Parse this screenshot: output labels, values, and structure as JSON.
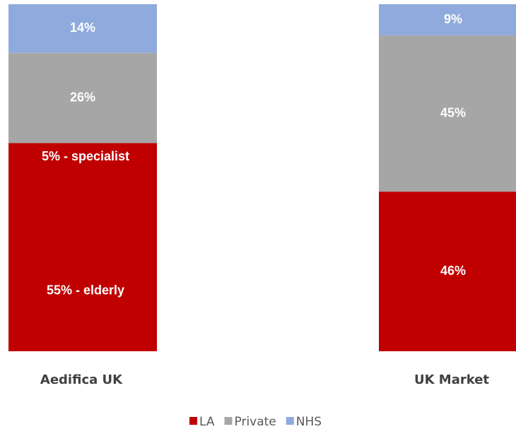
{
  "chart_data": {
    "type": "stacked_bar",
    "categories": [
      "Aedifica UK",
      "UK Market"
    ],
    "series": [
      {
        "name": "LA",
        "color": "#c00000",
        "values": [
          60,
          46
        ],
        "value_labels": [
          null,
          "46%"
        ]
      },
      {
        "name": "Private",
        "color": "#a6a6a6",
        "values": [
          26,
          45
        ],
        "value_labels": [
          "26%",
          "45%"
        ]
      },
      {
        "name": "NHS",
        "color": "#8faadc",
        "values": [
          14,
          9
        ],
        "value_labels": [
          "14%",
          "9%"
        ]
      }
    ],
    "annotations": [
      {
        "text": "5% - specialist",
        "value": 5
      },
      {
        "text": "55% - elderly",
        "value": 55
      }
    ],
    "ylim": [
      0,
      100
    ]
  }
}
